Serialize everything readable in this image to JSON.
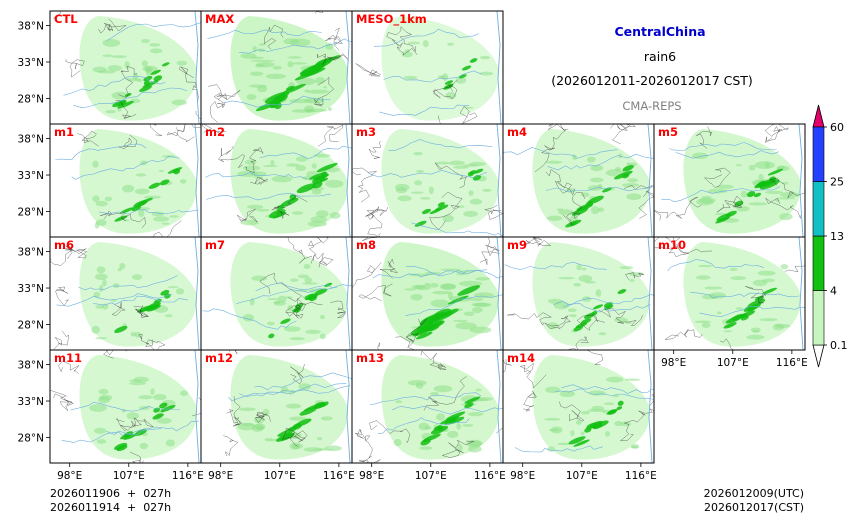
{
  "title": {
    "region": "CentralChina",
    "variable": "rain6",
    "period": "(2026012011-2026012017 CST)",
    "system": "CMA-REPS"
  },
  "footer": {
    "init_utc_line": "2026011906  +  027h",
    "init_cst_line": "2026011914  +  027h",
    "valid_utc": "2026012009(UTC)",
    "valid_cst": "2026012017(CST)"
  },
  "colors": {
    "panel_label": "#ff0000",
    "region_title": "#0000cc",
    "system_label": "#808080",
    "light_green": "#c7f5c0",
    "mid_green": "#8fe08a",
    "green": "#11c011",
    "cyan": "#11bfc4",
    "blue": "#2440ff",
    "magenta": "#e4006b",
    "river": "#6fb0e0",
    "border": "#333333"
  },
  "chart_data": {
    "type": "heatmap",
    "description": "Ensemble member maps of 6-hour accumulated precipitation",
    "panels": [
      {
        "label": "CTL",
        "row": 0,
        "col": 0,
        "intensity": 0.55
      },
      {
        "label": "MAX",
        "row": 0,
        "col": 1,
        "intensity": 1.0
      },
      {
        "label": "MESO_1km",
        "row": 0,
        "col": 2,
        "intensity": 0.2
      },
      {
        "label": "m1",
        "row": 1,
        "col": 0,
        "intensity": 0.5
      },
      {
        "label": "m2",
        "row": 1,
        "col": 1,
        "intensity": 0.75
      },
      {
        "label": "m3",
        "row": 1,
        "col": 2,
        "intensity": 0.45
      },
      {
        "label": "m4",
        "row": 1,
        "col": 3,
        "intensity": 0.6
      },
      {
        "label": "m5",
        "row": 1,
        "col": 4,
        "intensity": 0.7
      },
      {
        "label": "m6",
        "row": 2,
        "col": 0,
        "intensity": 0.45
      },
      {
        "label": "m7",
        "row": 2,
        "col": 1,
        "intensity": 0.5
      },
      {
        "label": "m8",
        "row": 2,
        "col": 2,
        "intensity": 0.9
      },
      {
        "label": "m9",
        "row": 2,
        "col": 3,
        "intensity": 0.4
      },
      {
        "label": "m10",
        "row": 2,
        "col": 4,
        "intensity": 0.55
      },
      {
        "label": "m11",
        "row": 3,
        "col": 0,
        "intensity": 0.5
      },
      {
        "label": "m12",
        "row": 3,
        "col": 1,
        "intensity": 0.6
      },
      {
        "label": "m13",
        "row": 3,
        "col": 2,
        "intensity": 0.65
      },
      {
        "label": "m14",
        "row": 3,
        "col": 3,
        "intensity": 0.55
      }
    ],
    "lat_ticks": [
      "38°N",
      "33°N",
      "28°N"
    ],
    "lat_values": [
      38,
      33,
      28
    ],
    "lon_ticks": [
      "98°E",
      "107°E",
      "116°E"
    ],
    "lon_values": [
      98,
      107,
      116
    ],
    "lon_range": [
      95,
      118
    ],
    "lat_range": [
      24.5,
      40
    ],
    "colorbar": {
      "levels": [
        "0.1",
        "4",
        "13",
        "25",
        "60"
      ],
      "colors": [
        "#ffffff",
        "#c7f5c0",
        "#11c011",
        "#11bfc4",
        "#2440ff",
        "#e4006b"
      ],
      "extend": "both"
    }
  }
}
